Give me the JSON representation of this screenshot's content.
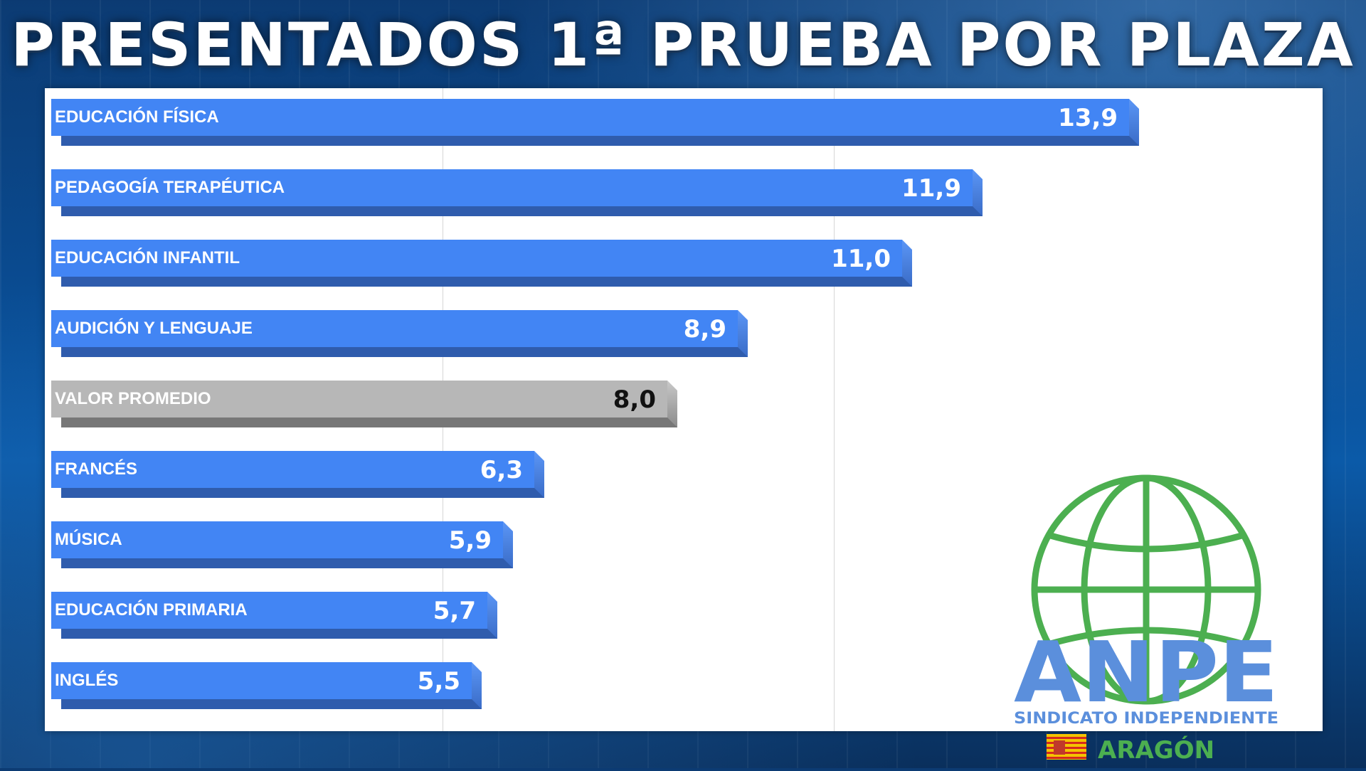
{
  "title": "PRESENTADOS 1ª PRUEBA POR PLAZA",
  "colors": {
    "bar": "#4285f4",
    "average_bar": "#b7b7b7",
    "logo_green": "#4caf50",
    "logo_blue": "#5b8fdc"
  },
  "chart_data": {
    "type": "bar",
    "orientation": "horizontal",
    "categories": [
      "EDUCACIÓN FÍSICA",
      "PEDAGOGÍA TERAPÉUTICA",
      "EDUCACIÓN INFANTIL",
      "AUDICIÓN Y LENGUAJE",
      "VALOR PROMEDIO",
      "FRANCÉS",
      "MÚSICA",
      "EDUCACIÓN PRIMARIA",
      "INGLÉS"
    ],
    "values": [
      13.9,
      11.9,
      11.0,
      8.9,
      8.0,
      6.3,
      5.9,
      5.7,
      5.5
    ],
    "value_labels": [
      "13,9",
      "11,9",
      "11,0",
      "8,9",
      "8,0",
      "6,3",
      "5,9",
      "5,7",
      "5,5"
    ],
    "highlight_category": "VALOR PROMEDIO",
    "xlim": [
      0,
      15
    ],
    "grid": true,
    "title": "PRESENTADOS 1ª PRUEBA POR PLAZA",
    "xlabel": "",
    "ylabel": ""
  },
  "logo": {
    "name": "ANPE",
    "subtitle": "SINDICATO INDEPENDIENTE",
    "region": "ARAGÓN"
  }
}
